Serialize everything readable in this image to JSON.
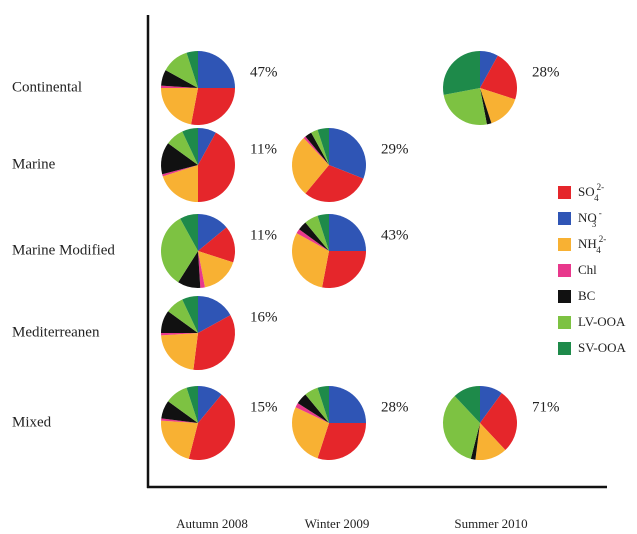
{
  "chart_data": {
    "type": "pie-grid",
    "rows": [
      "Continental",
      "Marine",
      "Marine Modified",
      "Mediterreanen",
      "Mixed"
    ],
    "columns": [
      "Autumn 2008",
      "Winter 2009",
      "Summer 2010"
    ],
    "series": [
      {
        "name": "SO",
        "sub": "4",
        "sup": "2-",
        "color": "#e5262b"
      },
      {
        "name": "NO",
        "sub": "3",
        "sup": "-",
        "color": "#2f55b5"
      },
      {
        "name": "NH",
        "sub": "4",
        "sup": "2-",
        "color": "#f8b133"
      },
      {
        "name": "Chl",
        "color": "#e8388c"
      },
      {
        "name": "BC",
        "color": "#111111"
      },
      {
        "name": "LV-OOA",
        "color": "#7dc242"
      },
      {
        "name": "SV-OOA",
        "color": "#1e8a4a"
      }
    ],
    "pies": [
      {
        "row": 0,
        "column": 0,
        "values": [
          28,
          25,
          22,
          1,
          7,
          12,
          5
        ],
        "share": 47,
        "share_label": "47%"
      },
      {
        "row": 0,
        "column": 2,
        "values": [
          22,
          8,
          15,
          0,
          2,
          25,
          28
        ],
        "share": 28,
        "share_label": "28%"
      },
      {
        "row": 1,
        "column": 0,
        "values": [
          42,
          8,
          20,
          1,
          14,
          8,
          7
        ],
        "share": 11,
        "share_label": "11%"
      },
      {
        "row": 1,
        "column": 1,
        "values": [
          30,
          31,
          27,
          1,
          3,
          3,
          5
        ],
        "share": 29,
        "share_label": "29%"
      },
      {
        "row": 2,
        "column": 0,
        "values": [
          16,
          14,
          17,
          2,
          10,
          33,
          8
        ],
        "share": 11,
        "share_label": "11%"
      },
      {
        "row": 2,
        "column": 1,
        "values": [
          28,
          25,
          30,
          2,
          4,
          6,
          5
        ],
        "share": 43,
        "share_label": "43%"
      },
      {
        "row": 3,
        "column": 0,
        "values": [
          35,
          17,
          22,
          1,
          10,
          8,
          7
        ],
        "share": 16,
        "share_label": "16%"
      },
      {
        "row": 4,
        "column": 0,
        "values": [
          43,
          11,
          22,
          1,
          8,
          10,
          5
        ],
        "share": 15,
        "share_label": "15%"
      },
      {
        "row": 4,
        "column": 1,
        "values": [
          30,
          25,
          27,
          2,
          5,
          6,
          5
        ],
        "share": 28,
        "share_label": "28%"
      },
      {
        "row": 4,
        "column": 2,
        "values": [
          28,
          10,
          14,
          0,
          2,
          34,
          12
        ],
        "share": 71,
        "share_label": "71%"
      }
    ]
  }
}
